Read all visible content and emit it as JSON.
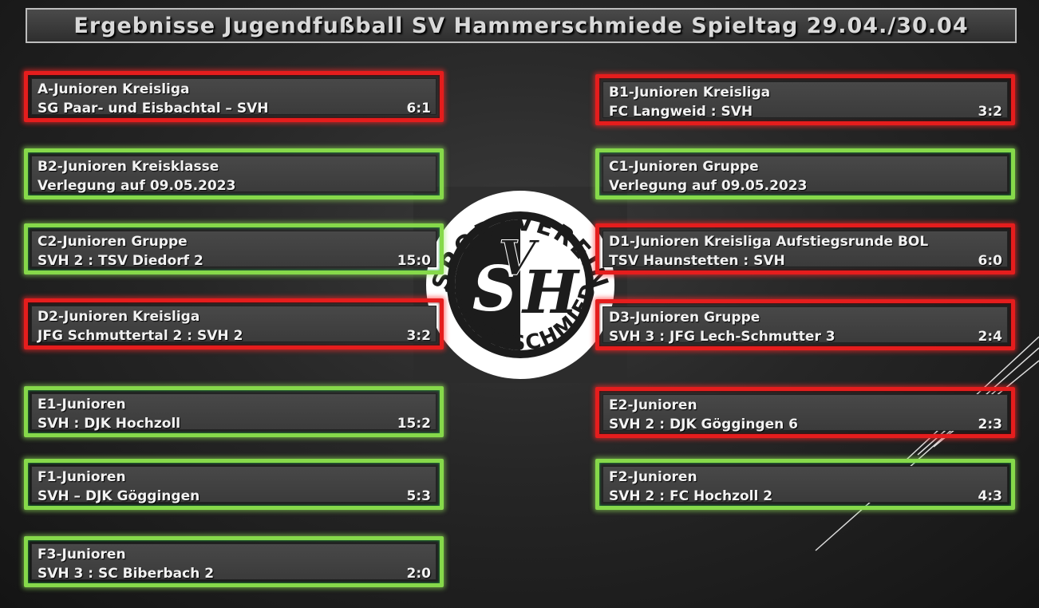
{
  "title": "Ergebnisse Jugendfußball SV Hammerschmiede Spieltag 29.04./30.04",
  "logo": {
    "text_top": "SPORTVEREIN",
    "text_bottom": "HAMMERSCHMIEDE",
    "monogram": "SVH"
  },
  "colors": {
    "loss": "#e51d1d",
    "win_or_other": "#86d94a"
  },
  "left": [
    {
      "league": "A-Junioren Kreisliga",
      "match": "SG Paar- und Eisbachtal – SVH",
      "score": "6:1",
      "status": "red"
    },
    {
      "league": "B2-Junioren Kreisklasse",
      "match": "Verlegung auf 09.05.2023",
      "score": "",
      "status": "green"
    },
    {
      "league": "C2-Junioren Gruppe",
      "match": "SVH 2 : TSV Diedorf 2",
      "score": "15:0",
      "status": "green"
    },
    {
      "league": "D2-Junioren Kreisliga",
      "match": "JFG Schmuttertal 2 : SVH 2",
      "score": "3:2",
      "status": "red"
    },
    {
      "league": "E1-Junioren",
      "match": "SVH : DJK Hochzoll",
      "score": "15:2",
      "status": "green"
    },
    {
      "league": "F1-Junioren",
      "match": "SVH – DJK Göggingen",
      "score": "5:3",
      "status": "green"
    },
    {
      "league": "F3-Junioren",
      "match": "SVH 3 : SC Biberbach 2",
      "score": "2:0",
      "status": "green"
    }
  ],
  "right": [
    {
      "league": "B1-Junioren Kreisliga",
      "match": "FC Langweid : SVH",
      "score": "3:2",
      "status": "red"
    },
    {
      "league": "C1-Junioren Gruppe",
      "match": "Verlegung auf 09.05.2023",
      "score": "",
      "status": "green"
    },
    {
      "league": "D1-Junioren Kreisliga Aufstiegsrunde BOL",
      "match": "TSV Haunstetten : SVH",
      "score": "6:0",
      "status": "red"
    },
    {
      "league": "D3-Junioren Gruppe",
      "match": "SVH 3 : JFG Lech-Schmutter 3",
      "score": "2:4",
      "status": "red"
    },
    {
      "league": "E2-Junioren",
      "match": "SVH 2 : DJK Göggingen 6",
      "score": "2:3",
      "status": "red"
    },
    {
      "league": "F2-Junioren",
      "match": "SVH 2 : FC Hochzoll 2",
      "score": "4:3",
      "status": "green"
    }
  ]
}
